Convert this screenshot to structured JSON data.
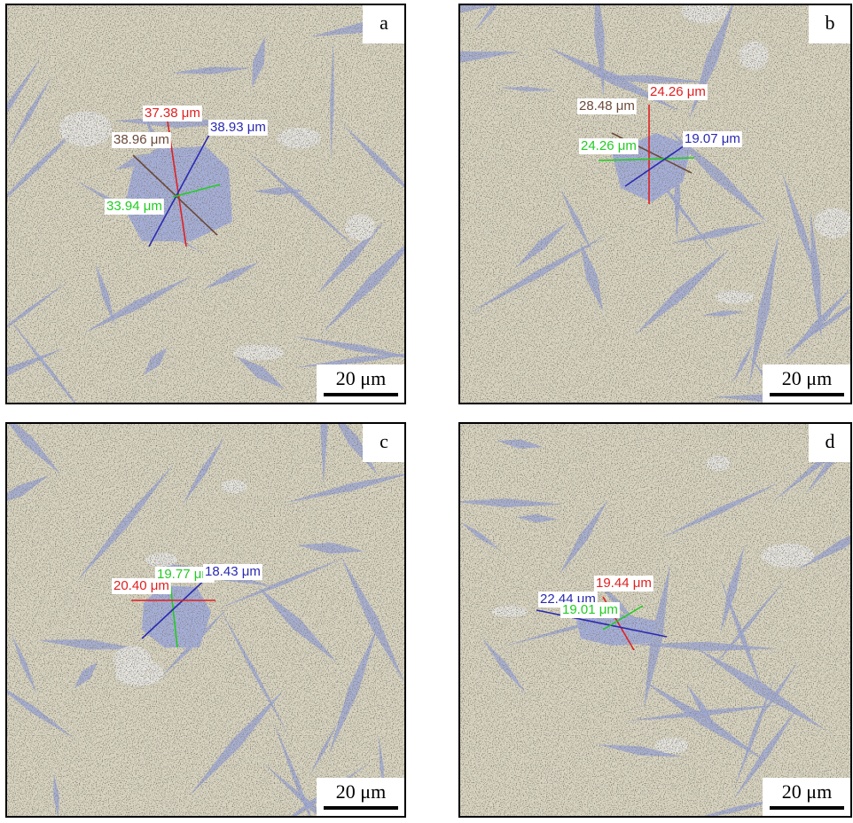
{
  "panels": [
    {
      "letter": "a",
      "scale_bar": "20 μm",
      "measurements": [
        {
          "label": "37.38 μm",
          "color": "#e02020"
        },
        {
          "label": "38.93 μm",
          "color": "#2a2ab0"
        },
        {
          "label": "38.96 μm",
          "color": "#6b4a3a"
        },
        {
          "label": "33.94 μm",
          "color": "#22cc22"
        }
      ]
    },
    {
      "letter": "b",
      "scale_bar": "20 μm",
      "measurements": [
        {
          "label": "28.48 μm",
          "color": "#6b4a3a"
        },
        {
          "label": "24.26 μm",
          "color": "#e02020"
        },
        {
          "label": "24.26 μm",
          "color": "#22cc22"
        },
        {
          "label": "19.07 μm",
          "color": "#2a2ab0"
        }
      ]
    },
    {
      "letter": "c",
      "scale_bar": "20 μm",
      "measurements": [
        {
          "label": "19.77 μm",
          "color": "#22cc22"
        },
        {
          "label": "18.43 μm",
          "color": "#2a2ab0"
        },
        {
          "label": "20.40 μm",
          "color": "#e02020"
        }
      ]
    },
    {
      "letter": "d",
      "scale_bar": "20 μm",
      "measurements": [
        {
          "label": "19.44 μm",
          "color": "#e02020"
        },
        {
          "label": "22.44 μm",
          "color": "#2a2ab0"
        },
        {
          "label": "19.01 μm",
          "color": "#22cc22"
        }
      ]
    }
  ]
}
